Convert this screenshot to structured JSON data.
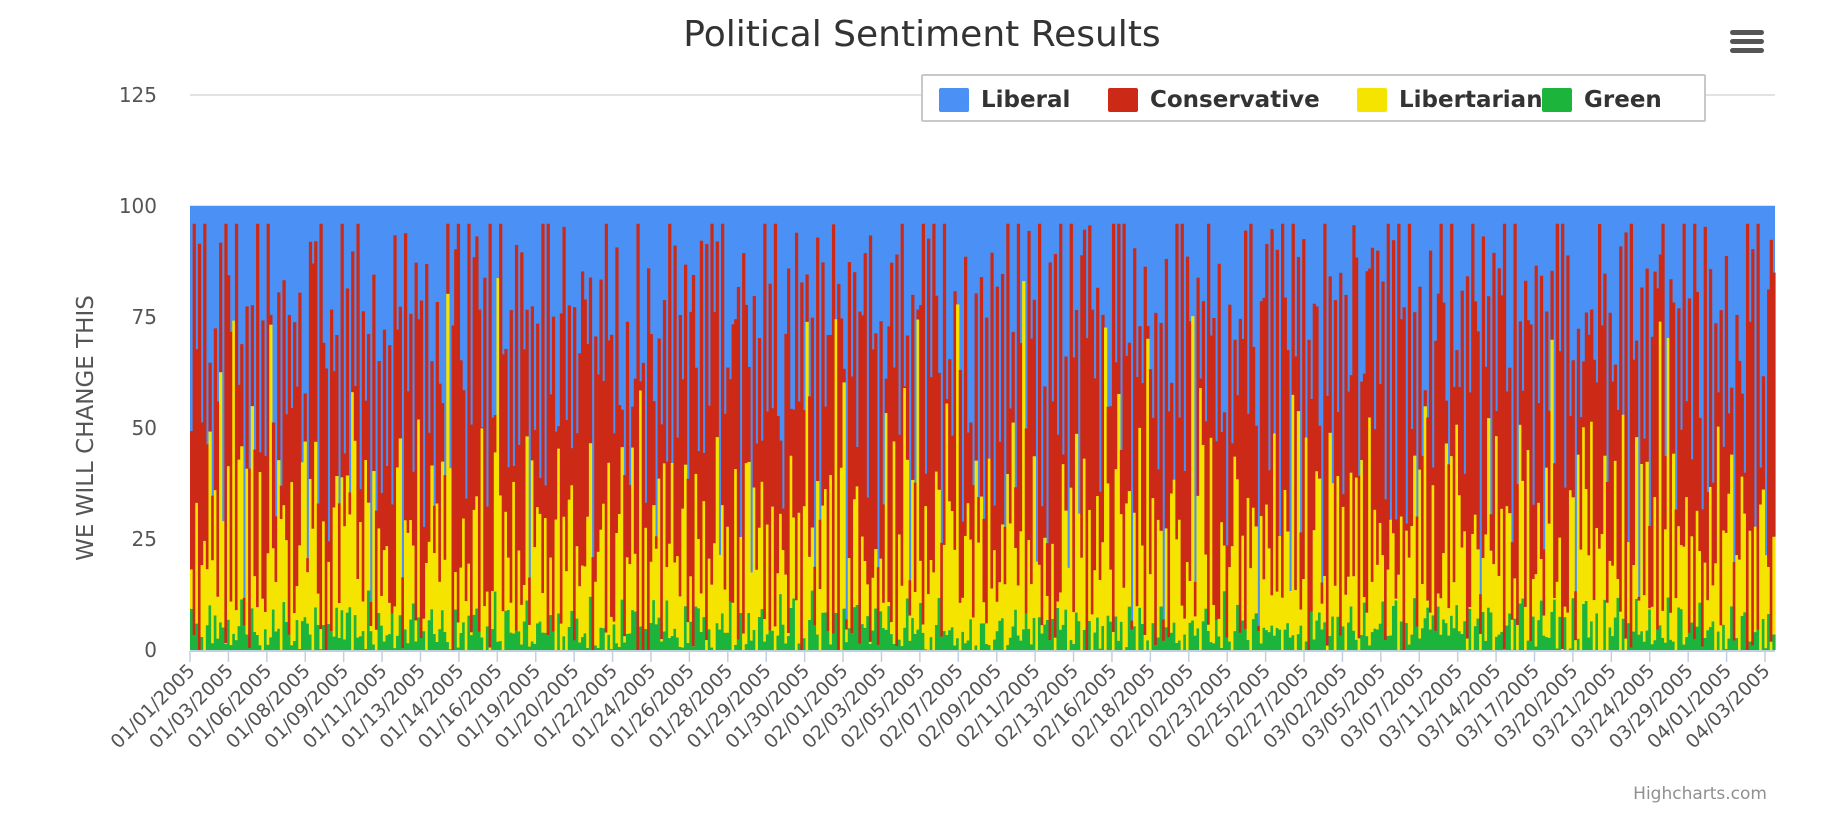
{
  "header": {
    "title": "Political Sentiment Results",
    "menu_icon": "hamburger-menu-icon"
  },
  "credit": "Highcharts.com",
  "chart_data": {
    "type": "area",
    "stacking": "normal",
    "title": "Political Sentiment Results",
    "ylabel": "WE WILL CHANGE THIS",
    "ylim": [
      0,
      125
    ],
    "yticks": [
      0,
      25,
      50,
      75,
      100,
      125
    ],
    "grid": true,
    "legend_position": "top-right",
    "x_tick_labels": [
      "01/01/2005",
      "01/03/2005",
      "01/06/2005",
      "01/08/2005",
      "01/09/2005",
      "01/11/2005",
      "01/13/2005",
      "01/14/2005",
      "01/16/2005",
      "01/19/2005",
      "01/20/2005",
      "01/22/2005",
      "01/24/2005",
      "01/26/2005",
      "01/28/2005",
      "01/29/2005",
      "01/30/2005",
      "02/01/2005",
      "02/03/2005",
      "02/05/2005",
      "02/07/2005",
      "02/09/2005",
      "02/11/2005",
      "02/13/2005",
      "02/16/2005",
      "02/18/2005",
      "02/20/2005",
      "02/23/2005",
      "02/25/2005",
      "02/27/2005",
      "03/02/2005",
      "03/05/2005",
      "03/07/2005",
      "03/11/2005",
      "03/14/2005",
      "03/17/2005",
      "03/20/2005",
      "03/21/2005",
      "03/24/2005",
      "03/29/2005",
      "04/01/2005",
      "04/03/2005"
    ],
    "series": [
      {
        "name": "Liberal",
        "color": "#4a90f5"
      },
      {
        "name": "Conservative",
        "color": "#cc2a16"
      },
      {
        "name": "Libertarian",
        "color": "#f5e300"
      },
      {
        "name": "Green",
        "color": "#1db43c"
      }
    ],
    "sample_bars": [
      {
        "green": 8,
        "libertarian": 24,
        "conservative": 44,
        "liberal": 100
      },
      {
        "green": 2,
        "libertarian": 10,
        "conservative": 90,
        "liberal": 100
      },
      {
        "green": 4,
        "libertarian": 38,
        "conservative": 56,
        "liberal": 100
      },
      {
        "green": 1,
        "libertarian": 6,
        "conservative": 80,
        "liberal": 100
      },
      {
        "green": 6,
        "libertarian": 20,
        "conservative": 42,
        "liberal": 100
      },
      {
        "green": 1,
        "libertarian": 12,
        "conservative": 95,
        "liberal": 100
      },
      {
        "green": 3,
        "libertarian": 28,
        "conservative": 60,
        "liberal": 100
      },
      {
        "green": 10,
        "libertarian": 35,
        "conservative": 66,
        "liberal": 100
      },
      {
        "green": 2,
        "libertarian": 9,
        "conservative": 22,
        "liberal": 100
      },
      {
        "green": 5,
        "libertarian": 30,
        "conservative": 88,
        "liberal": 100
      },
      {
        "green": 1,
        "libertarian": 15,
        "conservative": 48,
        "liberal": 100
      },
      {
        "green": 7,
        "libertarian": 40,
        "conservative": 74,
        "liberal": 100
      }
    ]
  }
}
